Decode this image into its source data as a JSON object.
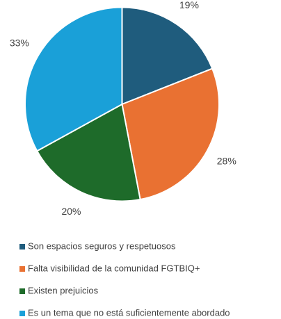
{
  "chart_data": {
    "type": "pie",
    "categories": [
      "Son espacios seguros y respetuosos",
      "Falta visibilidad de la comunidad FGTBIQ+",
      "Existen prejuicios",
      "Es un tema que no está suficientemente abordado"
    ],
    "values": [
      19,
      28,
      20,
      33
    ],
    "value_labels": [
      "19%",
      "28%",
      "20%",
      "33%"
    ],
    "colors": [
      "#1f5c7d",
      "#e97132",
      "#1e6b2a",
      "#1aa0d8"
    ],
    "legend": "bottom"
  }
}
